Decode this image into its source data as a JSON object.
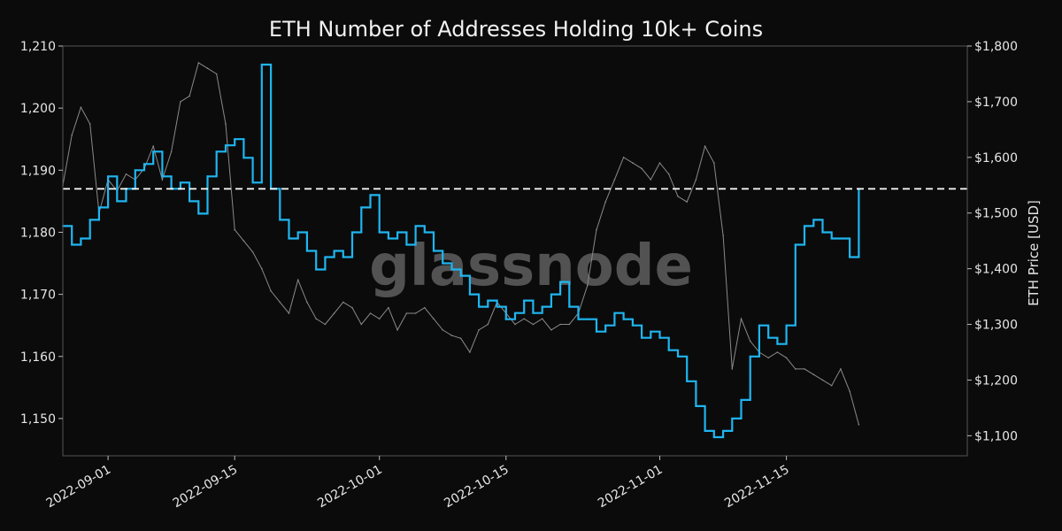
{
  "chart_data": {
    "type": "line",
    "title": "ETH Number of Addresses Holding 10k+ Coins",
    "watermark": "glassnode",
    "xlabel": "",
    "ylabel_left": "",
    "ylabel_right": "ETH Price [USD]",
    "x_range": [
      "2022-08-27",
      "2022-12-05"
    ],
    "x_ticks": [
      "2022-09-01",
      "2022-09-15",
      "2022-10-01",
      "2022-10-15",
      "2022-11-01",
      "2022-11-15"
    ],
    "y_left": {
      "range": [
        1144,
        1210
      ],
      "ticks": [
        1150,
        1160,
        1170,
        1180,
        1190,
        1200,
        1210
      ],
      "tick_labels": [
        "1,150",
        "1,160",
        "1,170",
        "1,180",
        "1,190",
        "1,200",
        "1,210"
      ]
    },
    "y_right": {
      "range": [
        1064,
        1800
      ],
      "ticks": [
        1100,
        1200,
        1300,
        1400,
        1500,
        1600,
        1700,
        1800
      ],
      "tick_labels": [
        "$1,100",
        "$1,200",
        "$1,300",
        "$1,400",
        "$1,500",
        "$1,600",
        "$1,700",
        "$1,800"
      ]
    },
    "reference_line": {
      "axis": "left",
      "value": 1187,
      "style": "dashed",
      "color": "#ffffff"
    },
    "grid": false,
    "colors": {
      "background": "#0b0b0c",
      "addresses": "#1fb6f0",
      "price": "#8a8a8a",
      "frame": "#555555"
    },
    "series": [
      {
        "name": "Addresses",
        "axis": "left",
        "color": "#1fb6f0",
        "x": [
          "2022-08-27",
          "2022-08-28",
          "2022-08-29",
          "2022-08-30",
          "2022-08-31",
          "2022-09-01",
          "2022-09-02",
          "2022-09-03",
          "2022-09-04",
          "2022-09-05",
          "2022-09-06",
          "2022-09-07",
          "2022-09-08",
          "2022-09-09",
          "2022-09-10",
          "2022-09-11",
          "2022-09-12",
          "2022-09-13",
          "2022-09-14",
          "2022-09-15",
          "2022-09-16",
          "2022-09-17",
          "2022-09-18",
          "2022-09-19",
          "2022-09-20",
          "2022-09-21",
          "2022-09-22",
          "2022-09-23",
          "2022-09-24",
          "2022-09-25",
          "2022-09-26",
          "2022-09-27",
          "2022-09-28",
          "2022-09-29",
          "2022-09-30",
          "2022-10-01",
          "2022-10-02",
          "2022-10-03",
          "2022-10-04",
          "2022-10-05",
          "2022-10-06",
          "2022-10-07",
          "2022-10-08",
          "2022-10-09",
          "2022-10-10",
          "2022-10-11",
          "2022-10-12",
          "2022-10-13",
          "2022-10-14",
          "2022-10-15",
          "2022-10-16",
          "2022-10-17",
          "2022-10-18",
          "2022-10-19",
          "2022-10-20",
          "2022-10-21",
          "2022-10-22",
          "2022-10-23",
          "2022-10-24",
          "2022-10-25",
          "2022-10-26",
          "2022-10-27",
          "2022-10-28",
          "2022-10-29",
          "2022-10-30",
          "2022-10-31",
          "2022-11-01",
          "2022-11-02",
          "2022-11-03",
          "2022-11-04",
          "2022-11-05",
          "2022-11-06",
          "2022-11-07",
          "2022-11-08",
          "2022-11-09",
          "2022-11-10",
          "2022-11-11",
          "2022-11-12",
          "2022-11-13",
          "2022-11-14",
          "2022-11-15",
          "2022-11-16",
          "2022-11-17",
          "2022-11-18",
          "2022-11-19",
          "2022-11-20",
          "2022-11-21",
          "2022-11-22",
          "2022-11-23"
        ],
        "y": [
          1181,
          1178,
          1179,
          1182,
          1184,
          1189,
          1185,
          1187,
          1190,
          1191,
          1193,
          1189,
          1187,
          1188,
          1185,
          1183,
          1189,
          1193,
          1194,
          1195,
          1192,
          1188,
          1207,
          1187,
          1182,
          1179,
          1180,
          1177,
          1174,
          1176,
          1177,
          1176,
          1180,
          1184,
          1186,
          1180,
          1179,
          1180,
          1178,
          1181,
          1180,
          1177,
          1175,
          1174,
          1173,
          1170,
          1168,
          1169,
          1168,
          1166,
          1167,
          1169,
          1167,
          1168,
          1170,
          1172,
          1168,
          1166,
          1166,
          1164,
          1165,
          1167,
          1166,
          1165,
          1163,
          1164,
          1163,
          1161,
          1160,
          1156,
          1152,
          1148,
          1147,
          1148,
          1150,
          1153,
          1160,
          1165,
          1163,
          1162,
          1165,
          1178,
          1181,
          1182,
          1180,
          1179,
          1179,
          1176,
          1187
        ]
      },
      {
        "name": "ETH Price",
        "axis": "right",
        "color": "#8a8a8a",
        "x": [
          "2022-08-27",
          "2022-08-28",
          "2022-08-29",
          "2022-08-30",
          "2022-08-31",
          "2022-09-01",
          "2022-09-02",
          "2022-09-03",
          "2022-09-04",
          "2022-09-05",
          "2022-09-06",
          "2022-09-07",
          "2022-09-08",
          "2022-09-09",
          "2022-09-10",
          "2022-09-11",
          "2022-09-12",
          "2022-09-13",
          "2022-09-14",
          "2022-09-15",
          "2022-09-16",
          "2022-09-17",
          "2022-09-18",
          "2022-09-19",
          "2022-09-20",
          "2022-09-21",
          "2022-09-22",
          "2022-09-23",
          "2022-09-24",
          "2022-09-25",
          "2022-09-26",
          "2022-09-27",
          "2022-09-28",
          "2022-09-29",
          "2022-09-30",
          "2022-10-01",
          "2022-10-02",
          "2022-10-03",
          "2022-10-04",
          "2022-10-05",
          "2022-10-06",
          "2022-10-07",
          "2022-10-08",
          "2022-10-09",
          "2022-10-10",
          "2022-10-11",
          "2022-10-12",
          "2022-10-13",
          "2022-10-14",
          "2022-10-15",
          "2022-10-16",
          "2022-10-17",
          "2022-10-18",
          "2022-10-19",
          "2022-10-20",
          "2022-10-21",
          "2022-10-22",
          "2022-10-23",
          "2022-10-24",
          "2022-10-25",
          "2022-10-26",
          "2022-10-27",
          "2022-10-28",
          "2022-10-29",
          "2022-10-30",
          "2022-10-31",
          "2022-11-01",
          "2022-11-02",
          "2022-11-03",
          "2022-11-04",
          "2022-11-05",
          "2022-11-06",
          "2022-11-07",
          "2022-11-08",
          "2022-11-09",
          "2022-11-10",
          "2022-11-11",
          "2022-11-12",
          "2022-11-13",
          "2022-11-14",
          "2022-11-15",
          "2022-11-16",
          "2022-11-17",
          "2022-11-18",
          "2022-11-19",
          "2022-11-20",
          "2022-11-21",
          "2022-11-22",
          "2022-11-23"
        ],
        "y": [
          1550,
          1640,
          1690,
          1660,
          1500,
          1560,
          1540,
          1570,
          1560,
          1580,
          1620,
          1560,
          1610,
          1700,
          1710,
          1770,
          1760,
          1750,
          1660,
          1470,
          1450,
          1430,
          1400,
          1360,
          1340,
          1320,
          1380,
          1340,
          1310,
          1300,
          1320,
          1340,
          1330,
          1300,
          1320,
          1310,
          1330,
          1290,
          1320,
          1320,
          1330,
          1310,
          1290,
          1280,
          1275,
          1250,
          1290,
          1300,
          1340,
          1320,
          1300,
          1310,
          1300,
          1310,
          1290,
          1300,
          1300,
          1320,
          1370,
          1470,
          1520,
          1560,
          1600,
          1590,
          1580,
          1560,
          1590,
          1570,
          1530,
          1520,
          1560,
          1620,
          1590,
          1460,
          1220,
          1310,
          1270,
          1250,
          1240,
          1250,
          1240,
          1220,
          1220,
          1210,
          1200,
          1190,
          1220,
          1180,
          1120
        ]
      }
    ]
  }
}
